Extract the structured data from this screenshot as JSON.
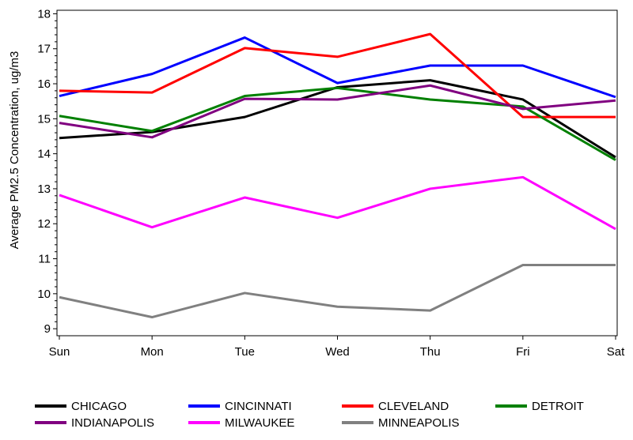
{
  "chart_data": {
    "type": "line",
    "ylabel": "Average PM2.5 Concentration, ug/m3",
    "xlabel": "",
    "title": "",
    "categories": [
      "Sun",
      "Mon",
      "Tue",
      "Wed",
      "Thu",
      "Fri",
      "Sat"
    ],
    "yticks": [
      "9",
      "10",
      "11",
      "12",
      "13",
      "14",
      "15",
      "16",
      "17",
      "18"
    ],
    "ylim": [
      8.8,
      18.1
    ],
    "grid": false,
    "legend_position": "bottom",
    "series": [
      {
        "name": "CHICAGO",
        "color": "#000000",
        "values": [
          14.45,
          14.62,
          15.05,
          15.9,
          16.1,
          15.55,
          13.9
        ]
      },
      {
        "name": "CINCINNATI",
        "color": "#0000ff",
        "values": [
          15.65,
          16.28,
          17.32,
          16.02,
          16.52,
          16.52,
          15.62
        ]
      },
      {
        "name": "CLEVELAND",
        "color": "#ff0000",
        "values": [
          15.8,
          15.75,
          17.02,
          16.77,
          17.42,
          15.05,
          15.05
        ]
      },
      {
        "name": "DETROIT",
        "color": "#008000",
        "values": [
          15.08,
          14.65,
          15.65,
          15.88,
          15.55,
          15.35,
          13.82
        ]
      },
      {
        "name": "INDIANAPOLIS",
        "color": "#800080",
        "values": [
          14.88,
          14.47,
          15.57,
          15.55,
          15.95,
          15.28,
          15.52
        ]
      },
      {
        "name": "MILWAUKEE",
        "color": "#ff00ff",
        "values": [
          12.82,
          11.9,
          12.75,
          12.17,
          13.0,
          13.33,
          11.85
        ]
      },
      {
        "name": "MINNEAPOLIS",
        "color": "#808080",
        "values": [
          9.9,
          9.33,
          10.02,
          9.63,
          9.52,
          10.82,
          10.82
        ]
      }
    ]
  }
}
